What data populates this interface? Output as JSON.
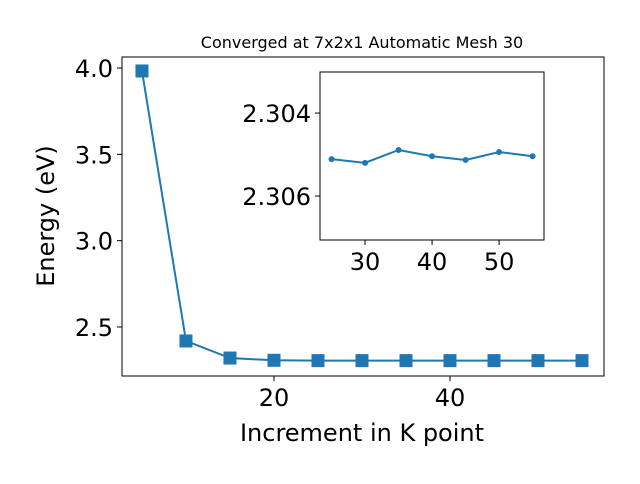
{
  "chart_data": [
    {
      "type": "line",
      "title": "Converged at 7x2x1 Automatic Mesh 30",
      "x_label": "Increment in K point",
      "y_label": "Energy (eV)",
      "x": [
        5,
        10,
        15,
        20,
        25,
        30,
        35,
        40,
        45,
        50,
        55
      ],
      "series": [
        {
          "color": "#1f77b4",
          "marker": "square",
          "values": [
            3.983,
            2.419,
            2.32,
            2.307,
            2.305,
            2.305,
            2.305,
            2.305,
            2.305,
            2.305,
            2.305
          ]
        }
      ],
      "xlim": [
        2.73,
        57.5
      ],
      "ylim": [
        2.216,
        4.064
      ],
      "xticks": [
        20,
        40
      ],
      "yticks": [
        {
          "value": 2.5,
          "label": "2.5"
        },
        {
          "value": 3.0,
          "label": "3.0"
        },
        {
          "value": 3.5,
          "label": "3.5"
        },
        {
          "value": 4.0,
          "label": "4.0"
        }
      ]
    },
    {
      "type": "line",
      "x": [
        25,
        30,
        35,
        40,
        45,
        50,
        55
      ],
      "series": [
        {
          "color": "#1f77b4",
          "marker": "circle",
          "values": [
            2.30511,
            2.3052,
            2.30489,
            2.30504,
            2.30513,
            2.30494,
            2.30504
          ]
        }
      ],
      "xlim": [
        23.28,
        56.7
      ],
      "ylim": [
        2.30706,
        2.30301
      ],
      "xticks": [
        30,
        40,
        50
      ],
      "yticks": [
        2.304,
        2.306
      ]
    }
  ]
}
